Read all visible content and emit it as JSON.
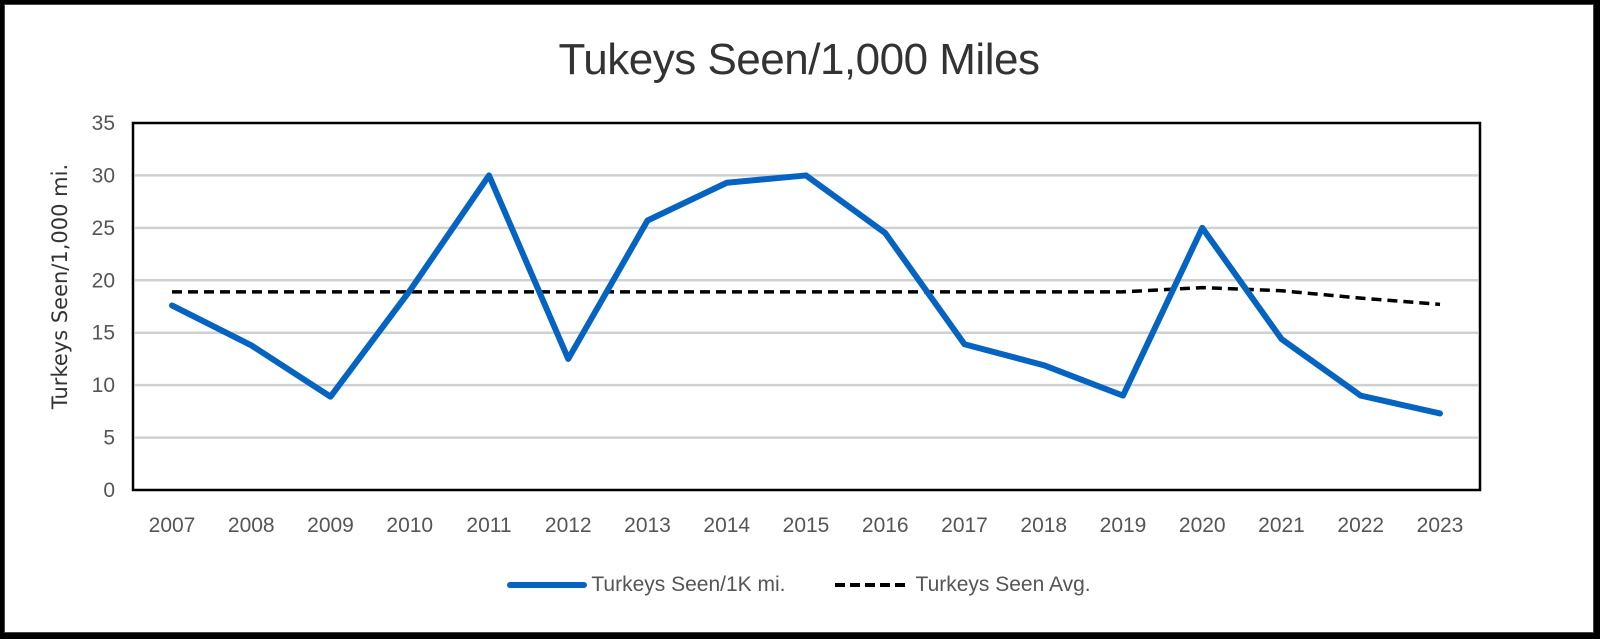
{
  "chart_data": {
    "type": "line",
    "title": "Tukeys Seen/1,000 Miles",
    "xlabel": "",
    "ylabel": "Turkeys Seen/1,000 mi.",
    "ylim": [
      0,
      35
    ],
    "yticks": [
      0,
      5,
      10,
      15,
      20,
      25,
      30,
      35
    ],
    "grid": true,
    "legend_position": "bottom",
    "categories": [
      "2007",
      "2008",
      "2009",
      "2010",
      "2011",
      "2012",
      "2013",
      "2014",
      "2015",
      "2016",
      "2017",
      "2018",
      "2019",
      "2020",
      "2021",
      "2022",
      "2023"
    ],
    "series": [
      {
        "name": "Turkeys Seen/1K mi.",
        "color": "#0563C1",
        "style": "solid",
        "values": [
          17.6,
          13.8,
          8.9,
          19.0,
          30.0,
          12.5,
          25.7,
          29.3,
          30.0,
          24.5,
          13.9,
          11.9,
          9.0,
          25.0,
          14.4,
          9.0,
          7.3
        ]
      },
      {
        "name": "Turkeys Seen Avg.",
        "color": "#000000",
        "style": "dashed",
        "values": [
          18.9,
          18.9,
          18.9,
          18.9,
          18.9,
          18.9,
          18.9,
          18.9,
          18.9,
          18.9,
          18.9,
          18.9,
          18.9,
          19.3,
          19.0,
          18.3,
          17.7
        ]
      }
    ]
  },
  "legend": {
    "items": [
      {
        "label": "Turkeys Seen/1K mi."
      },
      {
        "label": "Turkeys Seen Avg."
      }
    ]
  }
}
